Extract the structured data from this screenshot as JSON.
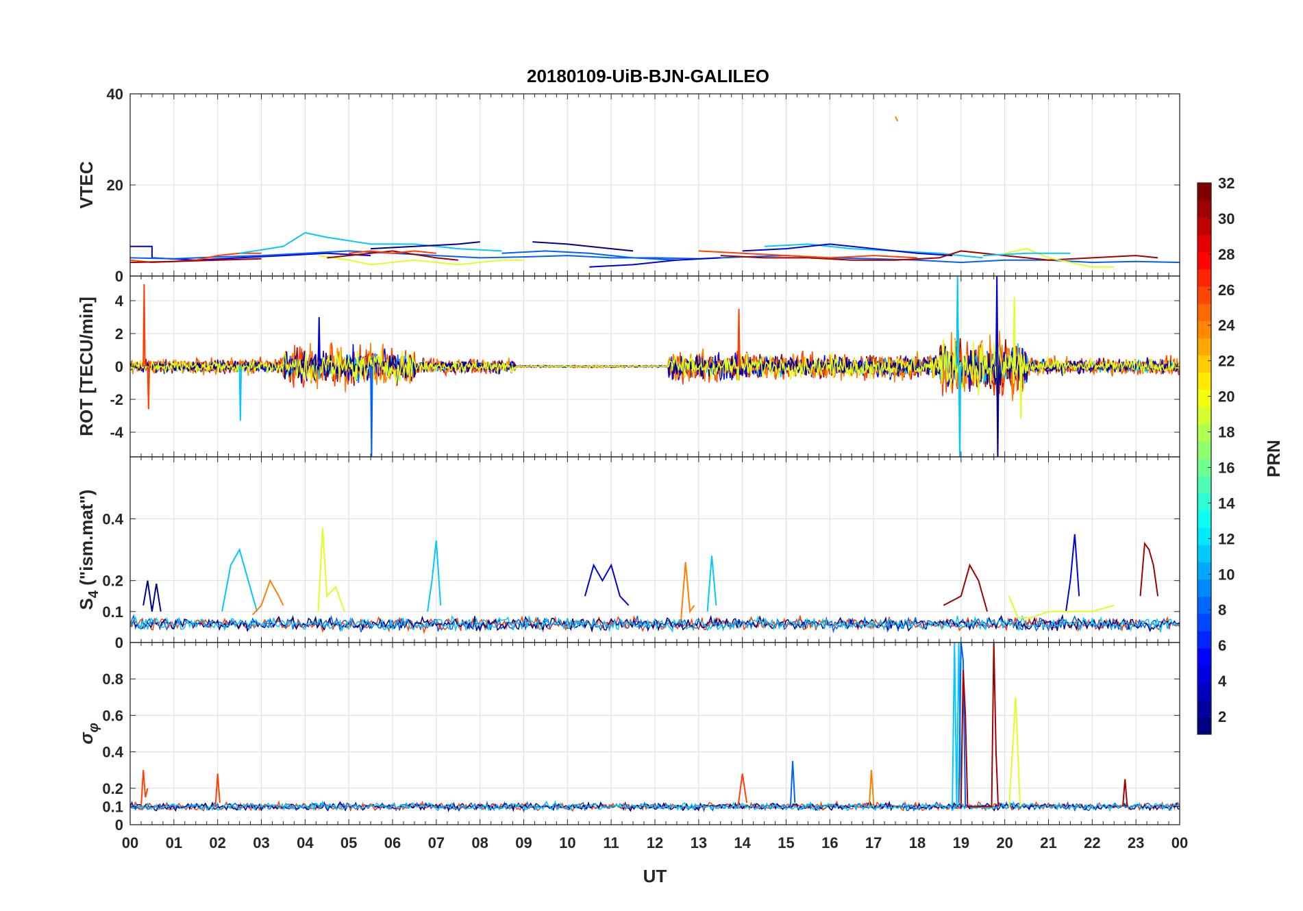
{
  "figure": {
    "title": "20180109-UiB-BJN-GALILEO",
    "xlabel": "UT",
    "colorbar_label": "PRN"
  },
  "chart_data": {
    "type": "line",
    "title": "20180109-UiB-BJN-GALILEO",
    "xlabel": "UT",
    "xlim": [
      0,
      24
    ],
    "x_tick_labels": [
      "00",
      "01",
      "02",
      "03",
      "04",
      "05",
      "06",
      "07",
      "08",
      "09",
      "10",
      "11",
      "12",
      "13",
      "14",
      "15",
      "16",
      "17",
      "18",
      "19",
      "20",
      "21",
      "22",
      "23",
      "00"
    ],
    "grid": true,
    "colormap": "jet",
    "colorbar": {
      "label": "PRN",
      "range": [
        1,
        32
      ],
      "ticks": [
        "2",
        "4",
        "6",
        "8",
        "10",
        "12",
        "14",
        "16",
        "18",
        "20",
        "22",
        "24",
        "26",
        "28",
        "30",
        "32"
      ]
    },
    "series_colors": {
      "prn2": "#00008f",
      "prn4": "#0000e0",
      "prn8": "#0060ff",
      "prn12": "#00c8ff",
      "prn19": "#e0ff20",
      "prn24": "#ff8000",
      "prn26": "#ff4000",
      "prn30": "#a00000"
    },
    "panels": [
      {
        "id": "vtec",
        "ylabel": "VTEC",
        "ylim": [
          0,
          40
        ],
        "yticks": [
          "0",
          "20",
          "40"
        ],
        "series": [
          {
            "prn": 4,
            "color": "#0000e0",
            "x": [
              0.0,
              0.5,
              0.5,
              1.5,
              2.5,
              3.5,
              4.5,
              5.5
            ],
            "y": [
              6.5,
              6.5,
              4.0,
              3.5,
              4.0,
              4.5,
              5.0,
              4.5
            ]
          },
          {
            "prn": 8,
            "color": "#0060ff",
            "x": [
              0.0,
              1.0,
              2.0,
              3.0,
              4.0,
              5.0,
              6.0,
              7.0,
              8.0,
              9.0,
              10.0,
              11.0,
              12.0,
              13.0,
              14.0,
              15.0,
              16.0,
              17.0,
              18.0,
              19.0,
              20.0,
              21.0,
              22.0,
              23.0,
              24.0
            ],
            "y": [
              4.0,
              3.8,
              4.2,
              4.5,
              5.0,
              5.5,
              5.0,
              4.5,
              4.0,
              4.2,
              4.5,
              4.0,
              4.0,
              3.8,
              4.2,
              4.5,
              4.0,
              3.8,
              3.5,
              3.0,
              3.5,
              3.5,
              3.0,
              3.2,
              3.0
            ]
          },
          {
            "prn": 26,
            "color": "#ff4000",
            "x": [
              0.0,
              0.5,
              1.0,
              1.5,
              2.0,
              2.5,
              3.0
            ],
            "y": [
              3.5,
              3.0,
              3.2,
              3.5,
              4.5,
              5.0,
              5.0
            ]
          },
          {
            "prn": 30,
            "color": "#a00000",
            "x": [
              0.0,
              1.0,
              2.0,
              3.0
            ],
            "y": [
              3.0,
              3.2,
              3.5,
              3.8
            ]
          },
          {
            "prn": 12,
            "color": "#00c8ff",
            "x": [
              2.5,
              3.5,
              4.0,
              4.5,
              5.5,
              6.5,
              7.5,
              8.5
            ],
            "y": [
              5.0,
              6.5,
              9.5,
              8.5,
              7.0,
              7.0,
              6.0,
              5.5
            ]
          },
          {
            "prn": 19,
            "color": "#e0ff20",
            "x": [
              4.3,
              5.0,
              5.5,
              6.5,
              7.5,
              8.5,
              9.0
            ],
            "y": [
              4.5,
              3.5,
              2.5,
              3.5,
              2.5,
              3.5,
              3.5
            ]
          },
          {
            "prn": 30,
            "color": "#a00000",
            "x": [
              4.5,
              5.0,
              5.5,
              6.0,
              7.0,
              7.5
            ],
            "y": [
              4.0,
              4.5,
              5.0,
              5.5,
              4.0,
              3.5
            ]
          },
          {
            "prn": 26,
            "color": "#ff4000",
            "x": [
              5.0,
              5.5,
              6.0,
              6.5,
              7.0
            ],
            "y": [
              5.0,
              5.5,
              5.0,
              5.5,
              5.0
            ]
          },
          {
            "prn": 2,
            "color": "#00008f",
            "x": [
              5.5,
              6.5,
              7.5,
              8.0
            ],
            "y": [
              6.0,
              6.5,
              7.0,
              7.5
            ]
          },
          {
            "prn": 2,
            "color": "#00008f",
            "x": [
              9.2,
              10.0,
              11.0,
              11.5
            ],
            "y": [
              7.5,
              7.0,
              6.0,
              5.5
            ]
          },
          {
            "prn": 8,
            "color": "#0060ff",
            "x": [
              8.5,
              9.5,
              10.5,
              11.5,
              12.5
            ],
            "y": [
              5.0,
              5.5,
              5.0,
              4.0,
              3.5
            ]
          },
          {
            "prn": 4,
            "color": "#0000e0",
            "x": [
              10.5,
              11.5,
              12.5,
              13.5
            ],
            "y": [
              2.0,
              2.5,
              3.5,
              4.0
            ]
          },
          {
            "prn": 12,
            "color": "#00c8ff",
            "x": [
              14.5,
              15.5,
              16.5,
              17.5,
              18.5,
              19.0,
              19.5
            ],
            "y": [
              6.5,
              7.0,
              6.0,
              5.5,
              5.0,
              4.5,
              4.0
            ]
          },
          {
            "prn": 4,
            "color": "#0000e0",
            "x": [
              14.0,
              15.0,
              16.0,
              17.0,
              18.0,
              18.8
            ],
            "y": [
              5.5,
              6.0,
              7.0,
              6.0,
              5.0,
              4.5
            ]
          },
          {
            "prn": 30,
            "color": "#a00000",
            "x": [
              13.5,
              14.5,
              15.5,
              16.5,
              17.5,
              18.5,
              19.0,
              19.5,
              20.0,
              21.0,
              22.0,
              23.0,
              23.5
            ],
            "y": [
              4.5,
              4.0,
              4.0,
              3.5,
              3.5,
              4.0,
              5.5,
              5.0,
              4.5,
              3.5,
              4.0,
              4.5,
              4.0
            ]
          },
          {
            "prn": 26,
            "color": "#ff4000",
            "x": [
              13.0,
              14.0,
              15.0,
              16.0,
              17.0,
              18.0
            ],
            "y": [
              5.5,
              5.0,
              4.5,
              4.0,
              4.5,
              4.0
            ]
          },
          {
            "prn": 19,
            "color": "#e0ff20",
            "x": [
              20.0,
              20.5,
              21.0,
              21.5,
              22.0,
              22.5
            ],
            "y": [
              5.0,
              6.0,
              4.0,
              3.0,
              2.0,
              2.0
            ]
          },
          {
            "prn": 12,
            "color": "#00c8ff",
            "x": [
              19.5,
              20.5,
              21.5
            ],
            "y": [
              4.5,
              5.0,
              5.0
            ]
          },
          {
            "prn": 24,
            "color": "#ff8000",
            "x": [
              17.5,
              17.55
            ],
            "y": [
              35.0,
              34.0
            ]
          }
        ]
      },
      {
        "id": "rot",
        "ylabel": "ROT [TECU/min]",
        "ylim": [
          -5.5,
          5.5
        ],
        "yticks": [
          "-4",
          "-2",
          "0",
          "2",
          "4"
        ],
        "series": []
      },
      {
        "id": "s4",
        "ylabel": "S4 (\"ism.mat\")",
        "ylabel_main": "S",
        "ylabel_sub": "4",
        "ylabel_rest": " (\"ism.mat\")",
        "ylim": [
          0,
          0.6
        ],
        "yticks": [
          "0",
          "0.1",
          "0.2",
          "0.4"
        ],
        "series": [
          {
            "prn": 2,
            "color": "#00008f",
            "x": [
              0.3,
              0.4,
              0.5,
              0.6,
              0.7
            ],
            "y": [
              0.12,
              0.2,
              0.1,
              0.19,
              0.1
            ]
          },
          {
            "prn": 12,
            "color": "#00c8ff",
            "x": [
              2.1,
              2.3,
              2.5,
              2.7,
              2.9
            ],
            "y": [
              0.1,
              0.25,
              0.3,
              0.2,
              0.1
            ]
          },
          {
            "prn": 24,
            "color": "#ff8000",
            "x": [
              2.8,
              3.0,
              3.2,
              3.4,
              3.5
            ],
            "y": [
              0.09,
              0.12,
              0.2,
              0.15,
              0.12
            ]
          },
          {
            "prn": 19,
            "color": "#e0ff20",
            "x": [
              4.3,
              4.4,
              4.5,
              4.7,
              4.9
            ],
            "y": [
              0.1,
              0.37,
              0.15,
              0.18,
              0.1
            ]
          },
          {
            "prn": 12,
            "color": "#00c8ff",
            "x": [
              6.8,
              6.9,
              7.0,
              7.1
            ],
            "y": [
              0.1,
              0.2,
              0.33,
              0.12
            ]
          },
          {
            "prn": 4,
            "color": "#0000e0",
            "x": [
              10.4,
              10.6,
              10.8,
              11.0,
              11.2,
              11.4
            ],
            "y": [
              0.15,
              0.25,
              0.2,
              0.25,
              0.15,
              0.12
            ]
          },
          {
            "prn": 24,
            "color": "#ff8000",
            "x": [
              12.6,
              12.7,
              12.8,
              12.9
            ],
            "y": [
              0.08,
              0.26,
              0.1,
              0.12
            ]
          },
          {
            "prn": 12,
            "color": "#00c8ff",
            "x": [
              13.2,
              13.3,
              13.4
            ],
            "y": [
              0.1,
              0.28,
              0.12
            ]
          },
          {
            "prn": 30,
            "color": "#a00000",
            "x": [
              18.6,
              19.0,
              19.2,
              19.4,
              19.6
            ],
            "y": [
              0.12,
              0.15,
              0.25,
              0.2,
              0.1
            ]
          },
          {
            "prn": 4,
            "color": "#0000e0",
            "x": [
              21.4,
              21.5,
              21.6,
              21.7
            ],
            "y": [
              0.1,
              0.2,
              0.35,
              0.15
            ]
          },
          {
            "prn": 30,
            "color": "#a00000",
            "x": [
              23.1,
              23.2,
              23.3,
              23.4,
              23.5
            ],
            "y": [
              0.15,
              0.32,
              0.3,
              0.25,
              0.15
            ]
          },
          {
            "prn": 19,
            "color": "#e0ff20",
            "x": [
              20.1,
              20.3,
              20.6,
              21.0,
              22.0,
              22.5
            ],
            "y": [
              0.15,
              0.08,
              0.08,
              0.1,
              0.1,
              0.12
            ]
          }
        ]
      },
      {
        "id": "sigphi",
        "ylabel": "σφ",
        "ylabel_main": "σ",
        "ylabel_sub": "φ",
        "ylim": [
          0,
          1
        ],
        "yticks": [
          "0",
          "0.1",
          "0.2",
          "0.4",
          "0.6",
          "0.8"
        ],
        "series": [
          {
            "prn": 12,
            "color": "#00c8ff",
            "x": [
              18.8,
              18.85,
              18.9,
              18.95,
              19.0
            ],
            "y": [
              0.1,
              1.0,
              0.1,
              1.0,
              0.12
            ]
          },
          {
            "prn": 8,
            "color": "#0060ff",
            "x": [
              18.95,
              19.0,
              19.05,
              19.1
            ],
            "y": [
              0.12,
              1.0,
              0.9,
              0.1
            ]
          },
          {
            "prn": 30,
            "color": "#a00000",
            "x": [
              19.0,
              19.05,
              19.1,
              19.15,
              19.7,
              19.75,
              19.8,
              19.85
            ],
            "y": [
              0.1,
              0.85,
              0.6,
              0.1,
              0.1,
              1.0,
              0.4,
              0.1
            ]
          },
          {
            "prn": 19,
            "color": "#e0ff20",
            "x": [
              20.1,
              20.2,
              20.25,
              20.35
            ],
            "y": [
              0.1,
              0.5,
              0.7,
              0.1
            ]
          },
          {
            "prn": 26,
            "color": "#ff4000",
            "x": [
              0.25,
              0.3,
              0.35,
              0.4
            ],
            "y": [
              0.1,
              0.3,
              0.15,
              0.2
            ]
          },
          {
            "prn": 26,
            "color": "#ff4000",
            "x": [
              1.95,
              2.0,
              2.05
            ],
            "y": [
              0.1,
              0.28,
              0.12
            ]
          },
          {
            "prn": 8,
            "color": "#0060ff",
            "x": [
              15.1,
              15.15,
              15.2
            ],
            "y": [
              0.1,
              0.35,
              0.12
            ]
          },
          {
            "prn": 24,
            "color": "#ff8000",
            "x": [
              16.9,
              16.95,
              17.0
            ],
            "y": [
              0.1,
              0.3,
              0.12
            ]
          },
          {
            "prn": 26,
            "color": "#ff4000",
            "x": [
              13.9,
              14.0,
              14.1
            ],
            "y": [
              0.1,
              0.28,
              0.12
            ]
          },
          {
            "prn": 30,
            "color": "#a00000",
            "x": [
              22.7,
              22.75,
              22.8
            ],
            "y": [
              0.1,
              0.25,
              0.1
            ]
          }
        ]
      }
    ]
  }
}
